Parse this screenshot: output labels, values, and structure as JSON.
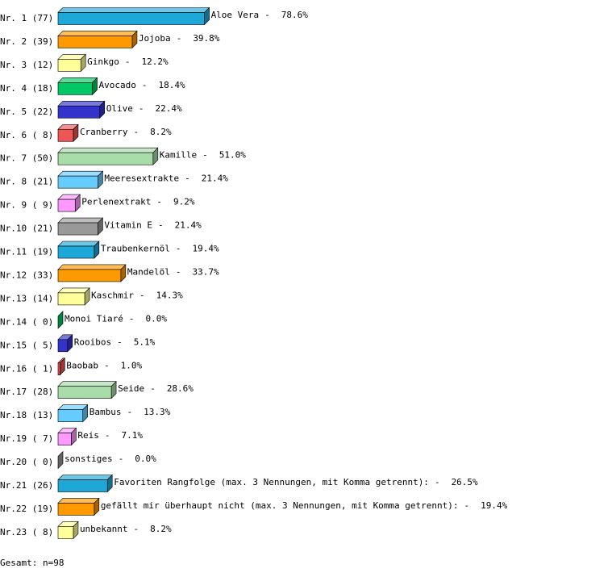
{
  "chart_data": {
    "type": "bar",
    "orientation": "horizontal",
    "categories": [
      "Nr. 1 (77)",
      "Nr. 2 (39)",
      "Nr. 3 (12)",
      "Nr. 4 (18)",
      "Nr. 5 (22)",
      "Nr. 6 ( 8)",
      "Nr. 7 (50)",
      "Nr. 8 (21)",
      "Nr. 9 ( 9)",
      "Nr.10 (21)",
      "Nr.11 (19)",
      "Nr.12 (33)",
      "Nr.13 (14)",
      "Nr.14 ( 0)",
      "Nr.15 ( 5)",
      "Nr.16 ( 1)",
      "Nr.17 (28)",
      "Nr.18 (13)",
      "Nr.19 ( 7)",
      "Nr.20 ( 0)",
      "Nr.21 (26)",
      "Nr.22 (19)",
      "Nr.23 ( 8)"
    ],
    "names": [
      "Aloe Vera",
      "Jojoba",
      "Ginkgo",
      "Avocado",
      "Olive",
      "Cranberry",
      "Kamille",
      "Meeresextrakte",
      "Perlenextrakt",
      "Vitamin E",
      "Traubenkernöl",
      "Mandelöl",
      "Kaschmir",
      "Monoi Tiaré",
      "Rooibos",
      "Baobab",
      "Seide",
      "Bambus",
      "Reis",
      "sonstiges",
      "Favoriten Rangfolge (max. 3 Nennungen, mit Komma getrennt):",
      "gefällt mir überhaupt nicht (max. 3 Nennungen, mit Komma getrennt):",
      "unbekannt"
    ],
    "separator": "-",
    "values": [
      78.6,
      39.8,
      12.2,
      18.4,
      22.4,
      8.2,
      51.0,
      21.4,
      9.2,
      21.4,
      19.4,
      33.7,
      14.3,
      0.0,
      5.1,
      1.0,
      28.6,
      13.3,
      7.1,
      0.0,
      26.5,
      19.4,
      8.2
    ],
    "value_labels": [
      "78.6%",
      "39.8%",
      "12.2%",
      "18.4%",
      "22.4%",
      "8.2%",
      "51.0%",
      "21.4%",
      "9.2%",
      "21.4%",
      "19.4%",
      "33.7%",
      "14.3%",
      "0.0%",
      "5.1%",
      "1.0%",
      "28.6%",
      "13.3%",
      "7.1%",
      "0.0%",
      "26.5%",
      "19.4%",
      "8.2%"
    ],
    "colors": [
      "#1ea8d8",
      "#ff9900",
      "#ffff99",
      "#00c864",
      "#3333cc",
      "#ee5555",
      "#a8dca8",
      "#66ccff",
      "#ff99ff",
      "#999999"
    ],
    "xlim": [
      0,
      100
    ],
    "footer": "Gesamt: n=98"
  }
}
